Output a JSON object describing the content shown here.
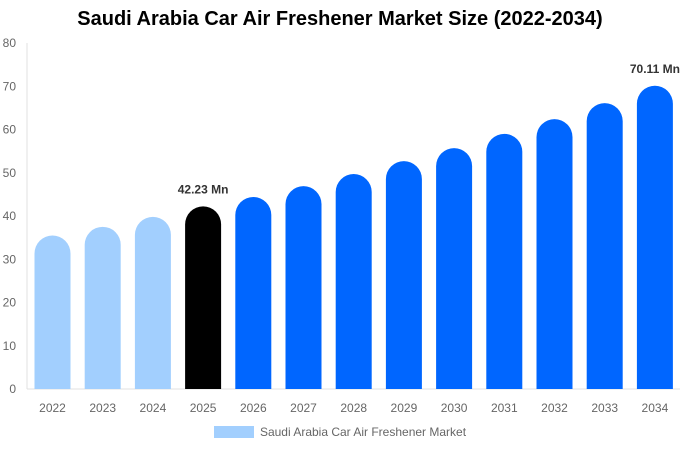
{
  "chart_data": {
    "type": "bar",
    "title": "Saudi Arabia Car Air Freshener Market Size (2022-2034)",
    "xlabel": "",
    "ylabel": "",
    "categories": [
      "2022",
      "2023",
      "2024",
      "2025",
      "2026",
      "2027",
      "2028",
      "2029",
      "2030",
      "2031",
      "2032",
      "2033",
      "2034"
    ],
    "series": [
      {
        "name": "Saudi Arabia Car Air Freshener Market",
        "values": [
          35.5,
          37.5,
          39.8,
          42.23,
          44.4,
          46.9,
          49.7,
          52.7,
          55.7,
          59.0,
          62.4,
          66.1,
          70.11
        ]
      }
    ],
    "bar_colors": [
      "#a2cffe",
      "#a2cffe",
      "#a2cffe",
      "#000000",
      "#0066ff",
      "#0066ff",
      "#0066ff",
      "#0066ff",
      "#0066ff",
      "#0066ff",
      "#0066ff",
      "#0066ff",
      "#0066ff"
    ],
    "legend_color": "#a2cffe",
    "data_labels": [
      {
        "index": 3,
        "text": "42.23 Mn"
      },
      {
        "index": 12,
        "text": "70.11 Mn"
      }
    ],
    "ylim": [
      0,
      80
    ],
    "yticks": [
      0,
      10,
      20,
      30,
      40,
      50,
      60,
      70,
      80
    ],
    "grid": false,
    "legend_position": "bottom"
  }
}
